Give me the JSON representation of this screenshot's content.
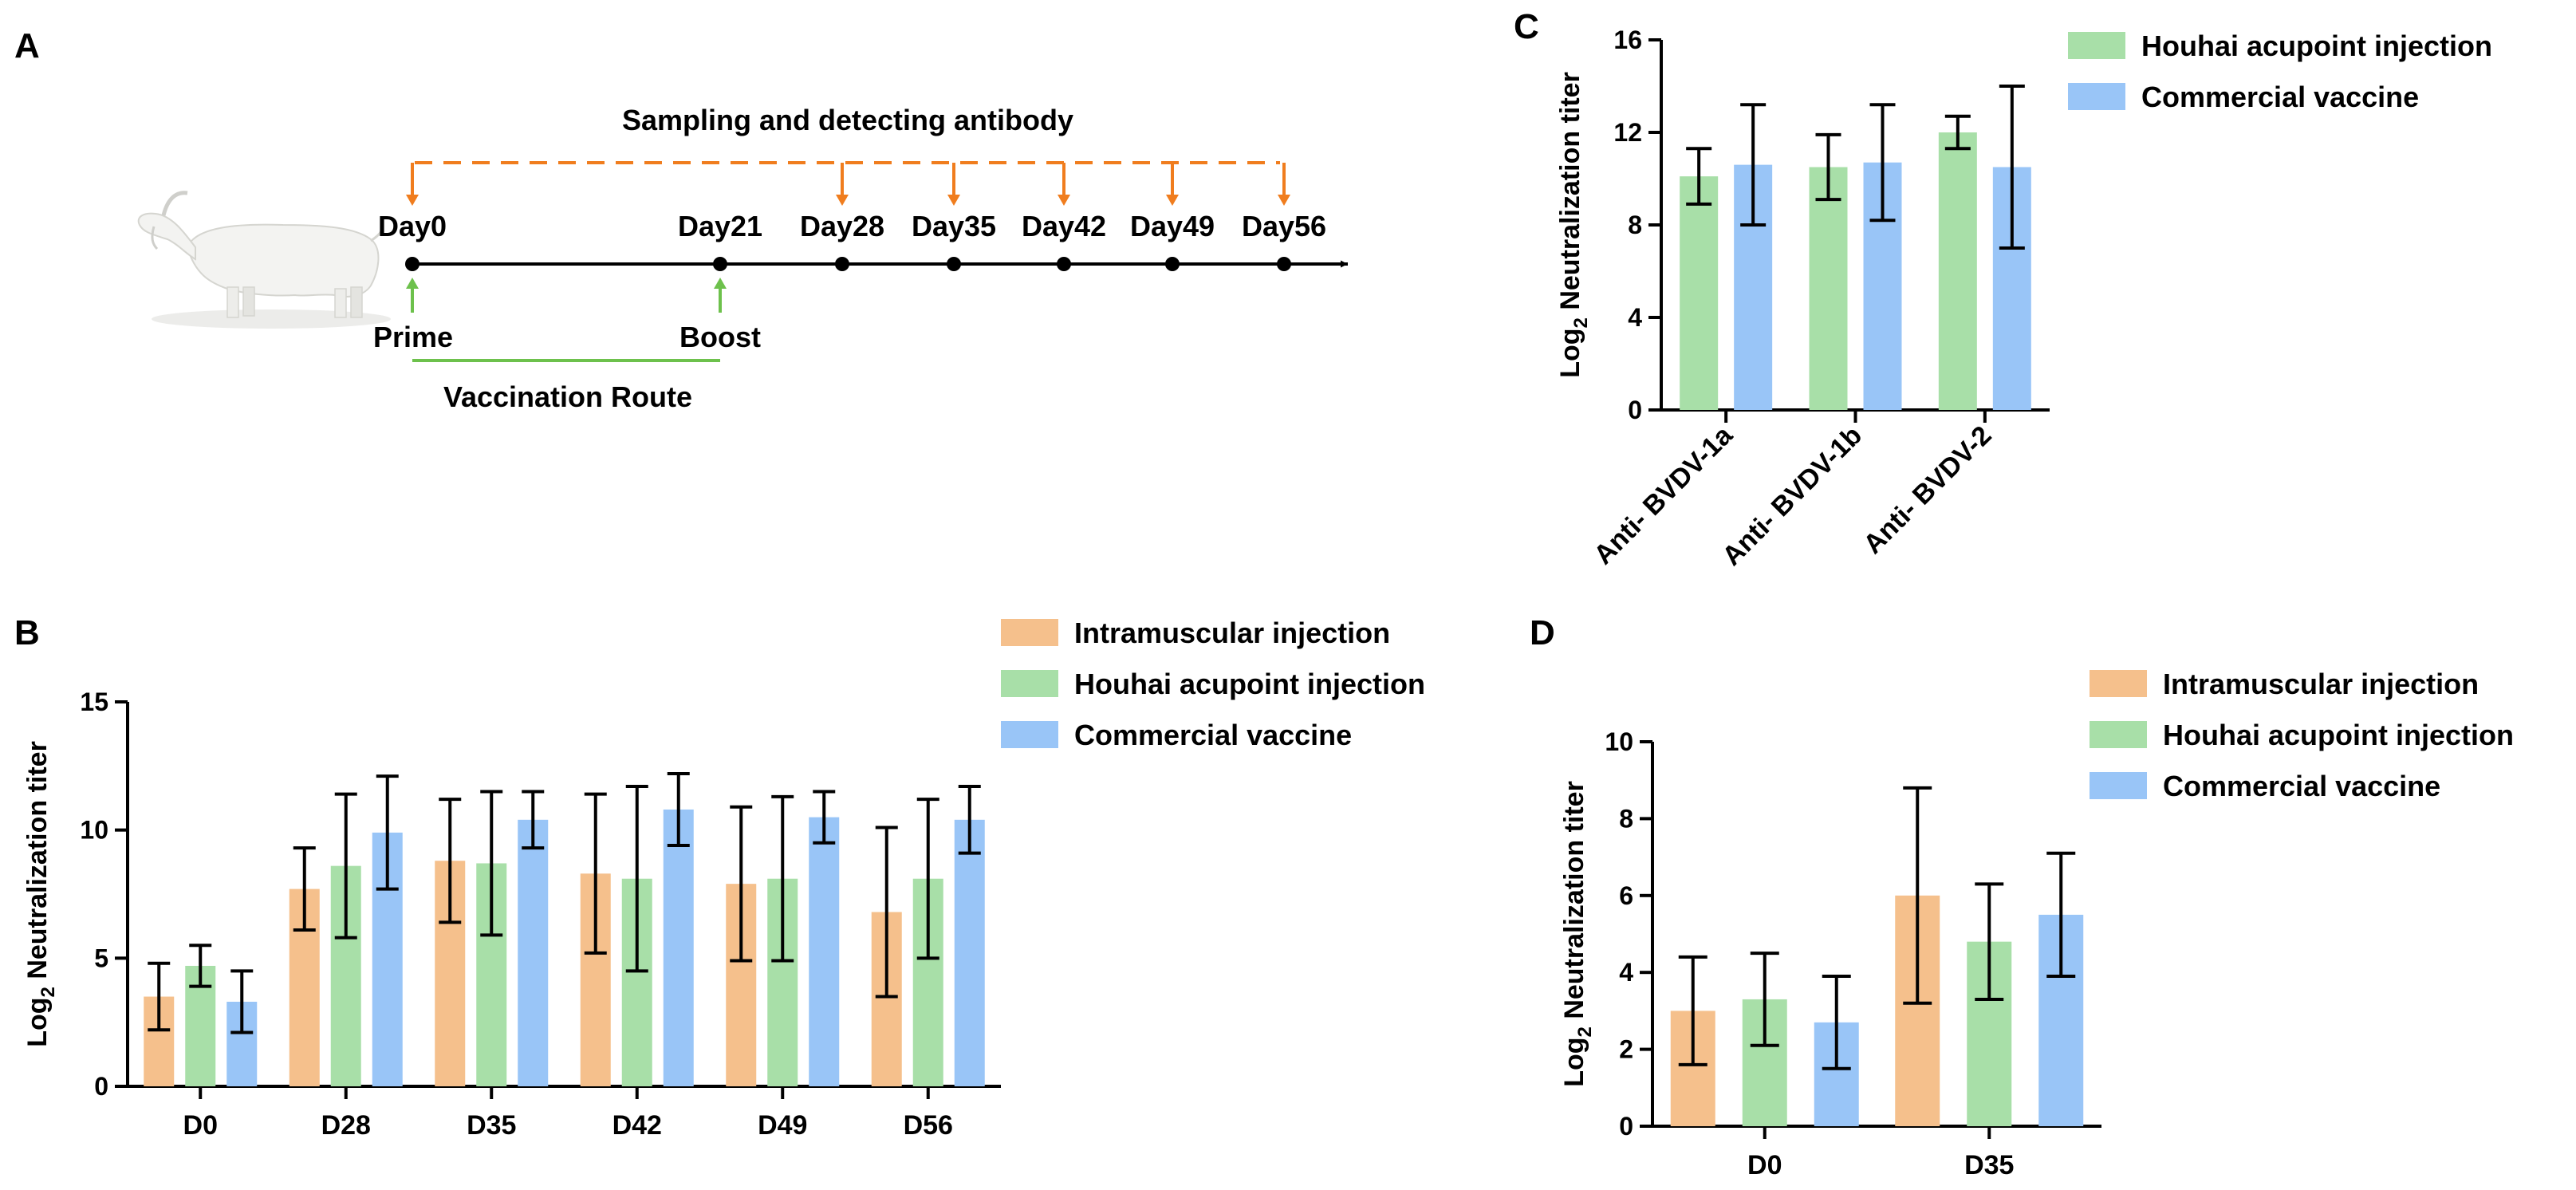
{
  "colors": {
    "intramuscular": "#F5C08C",
    "houhai": "#A8DFA8",
    "commercial": "#99C5F7",
    "sampling_arrow": "#F07D1E",
    "vaccination_arrow": "#6DC14C",
    "axis": "#000000",
    "goat_body": "#F3F3F1",
    "goat_shadow": "#CFCFCB"
  },
  "panels": {
    "A": {
      "letter": "A",
      "title": "Sampling and detecting antibody",
      "days": [
        "Day0",
        "Day21",
        "Day28",
        "Day35",
        "Day42",
        "Day49",
        "Day56"
      ],
      "prime": "Prime",
      "boost": "Boost",
      "route": "Vaccination Route"
    },
    "B": {
      "letter": "B"
    },
    "C": {
      "letter": "C"
    },
    "D": {
      "letter": "D"
    }
  },
  "chart_data": [
    {
      "id": "B",
      "type": "bar",
      "ylabel": "Log2 Neutralization titer",
      "ylabel_base": "Log",
      "ylabel_sub": "2",
      "ylabel_rest": " Neutralization titer",
      "ylim": [
        0,
        15
      ],
      "yticks": [
        0,
        5,
        10,
        15
      ],
      "categories": [
        "D0",
        "D28",
        "D35",
        "D42",
        "D49",
        "D56"
      ],
      "legend": [
        "Intramuscular injection",
        "Houhai acupoint injection",
        "Commercial vaccine"
      ],
      "series": [
        {
          "name": "Intramuscular injection",
          "color": "#F5C08C",
          "values": [
            3.5,
            7.7,
            8.8,
            8.3,
            7.9,
            6.8
          ],
          "errors": [
            1.3,
            1.6,
            2.4,
            3.1,
            3.0,
            3.3
          ]
        },
        {
          "name": "Houhai acupoint injection",
          "color": "#A8DFA8",
          "values": [
            4.7,
            8.6,
            8.7,
            8.1,
            8.1,
            8.1
          ],
          "errors": [
            0.8,
            2.8,
            2.8,
            3.6,
            3.2,
            3.1
          ]
        },
        {
          "name": "Commercial vaccine",
          "color": "#99C5F7",
          "values": [
            3.3,
            9.9,
            10.4,
            10.8,
            10.5,
            10.4
          ],
          "errors": [
            1.2,
            2.2,
            1.1,
            1.4,
            1.0,
            1.3
          ]
        }
      ]
    },
    {
      "id": "C",
      "type": "bar",
      "ylabel": "Log2 Neutralization titer",
      "ylabel_base": "Log",
      "ylabel_sub": "2",
      "ylabel_rest": " Neutralization titer",
      "ylim": [
        0,
        16
      ],
      "yticks": [
        0,
        4,
        8,
        12,
        16
      ],
      "categories": [
        "Anti- BVDV-1a",
        "Anti- BVDV-1b",
        "Anti- BVDV-2"
      ],
      "legend": [
        "Houhai acupoint injection",
        "Commercial vaccine"
      ],
      "series": [
        {
          "name": "Houhai acupoint injection",
          "color": "#A8DFA8",
          "values": [
            10.1,
            10.5,
            12.0
          ],
          "errors": [
            1.2,
            1.4,
            0.7
          ]
        },
        {
          "name": "Commercial vaccine",
          "color": "#99C5F7",
          "values": [
            10.6,
            10.7,
            10.5
          ],
          "errors": [
            2.6,
            2.5,
            3.5
          ]
        }
      ]
    },
    {
      "id": "D",
      "type": "bar",
      "ylabel": "Log2 Neutralization titer",
      "ylabel_base": "Log",
      "ylabel_sub": "2",
      "ylabel_rest": " Neutralization titer",
      "ylim": [
        0,
        10
      ],
      "yticks": [
        0,
        2,
        4,
        6,
        8,
        10
      ],
      "categories": [
        "D0",
        "D35"
      ],
      "legend": [
        "Intramuscular injection",
        "Houhai acupoint injection",
        "Commercial vaccine"
      ],
      "series": [
        {
          "name": "Intramuscular injection",
          "color": "#F5C08C",
          "values": [
            3.0,
            6.0
          ],
          "errors": [
            1.4,
            2.8
          ]
        },
        {
          "name": "Houhai acupoint injection",
          "color": "#A8DFA8",
          "values": [
            3.3,
            4.8
          ],
          "errors": [
            1.2,
            1.5
          ]
        },
        {
          "name": "Commercial vaccine",
          "color": "#99C5F7",
          "values": [
            2.7,
            5.5
          ],
          "errors": [
            1.2,
            1.6
          ]
        }
      ]
    }
  ]
}
